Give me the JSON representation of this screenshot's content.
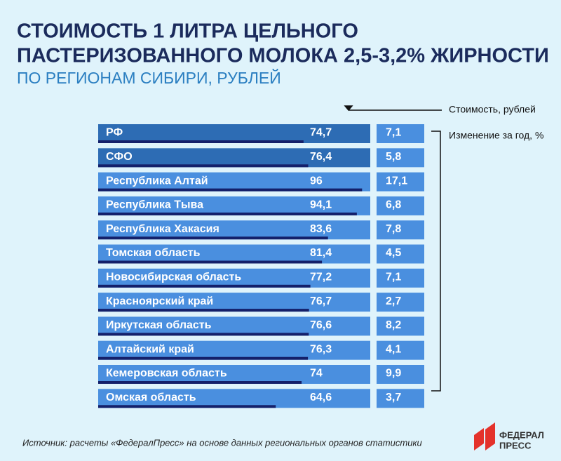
{
  "chart_data": {
    "type": "bar",
    "title": [
      "СТОИМОСТЬ 1 ЛИТРА ЦЕЛЬНОГО",
      "ПАСТЕРИЗОВАННОГО МОЛОКА 2,5-3,2% ЖИРНОСТИ"
    ],
    "subtitle": "ПО РЕГИОНАМ СИБИРИ, РУБЛЕЙ",
    "categories": [
      "РФ",
      "СФО",
      "Республика Алтай",
      "Республика Тыва",
      "Республика Хакасия",
      "Томская область",
      "Новосибирская область",
      "Красноярский край",
      "Иркутская область",
      "Алтайский край",
      "Кемеровская область",
      "Омская область"
    ],
    "row_colors": [
      "#2d6cb4",
      "#2d6cb4",
      "#4a8fdf",
      "#4a8fdf",
      "#4a8fdf",
      "#4a8fdf",
      "#4a8fdf",
      "#4a8fdf",
      "#4a8fdf",
      "#4a8fdf",
      "#4a8fdf",
      "#4a8fdf"
    ],
    "series": [
      {
        "name": "Стоимость, рублей",
        "color": "#14206a",
        "values": [
          74.7,
          76.4,
          96,
          94.1,
          83.6,
          81.4,
          77.2,
          76.7,
          76.6,
          76.3,
          74,
          64.6
        ],
        "value_labels": [
          "74,7",
          "76,4",
          "96",
          "94,1",
          "83,6",
          "81,4",
          "77,2",
          "76,7",
          "76,6",
          "76,3",
          "74",
          "64,6"
        ]
      },
      {
        "name": "Изменение за год, %",
        "color": "#4a8fdf",
        "values": [
          7.1,
          5.8,
          17.1,
          6.8,
          7.8,
          4.5,
          7.1,
          2.7,
          8.2,
          4.1,
          9.9,
          3.7
        ],
        "value_labels": [
          "7,1",
          "5,8",
          "17,1",
          "6,8",
          "7,8",
          "4,5",
          "7,1",
          "2,7",
          "8,2",
          "4,1",
          "9,9",
          "3,7"
        ]
      }
    ],
    "source": "Источник: расчеты «ФедералПресс» на основе данных региональных органов статистики"
  },
  "logo": [
    "ФЕДЕРАЛ",
    "ПРЕСС"
  ]
}
